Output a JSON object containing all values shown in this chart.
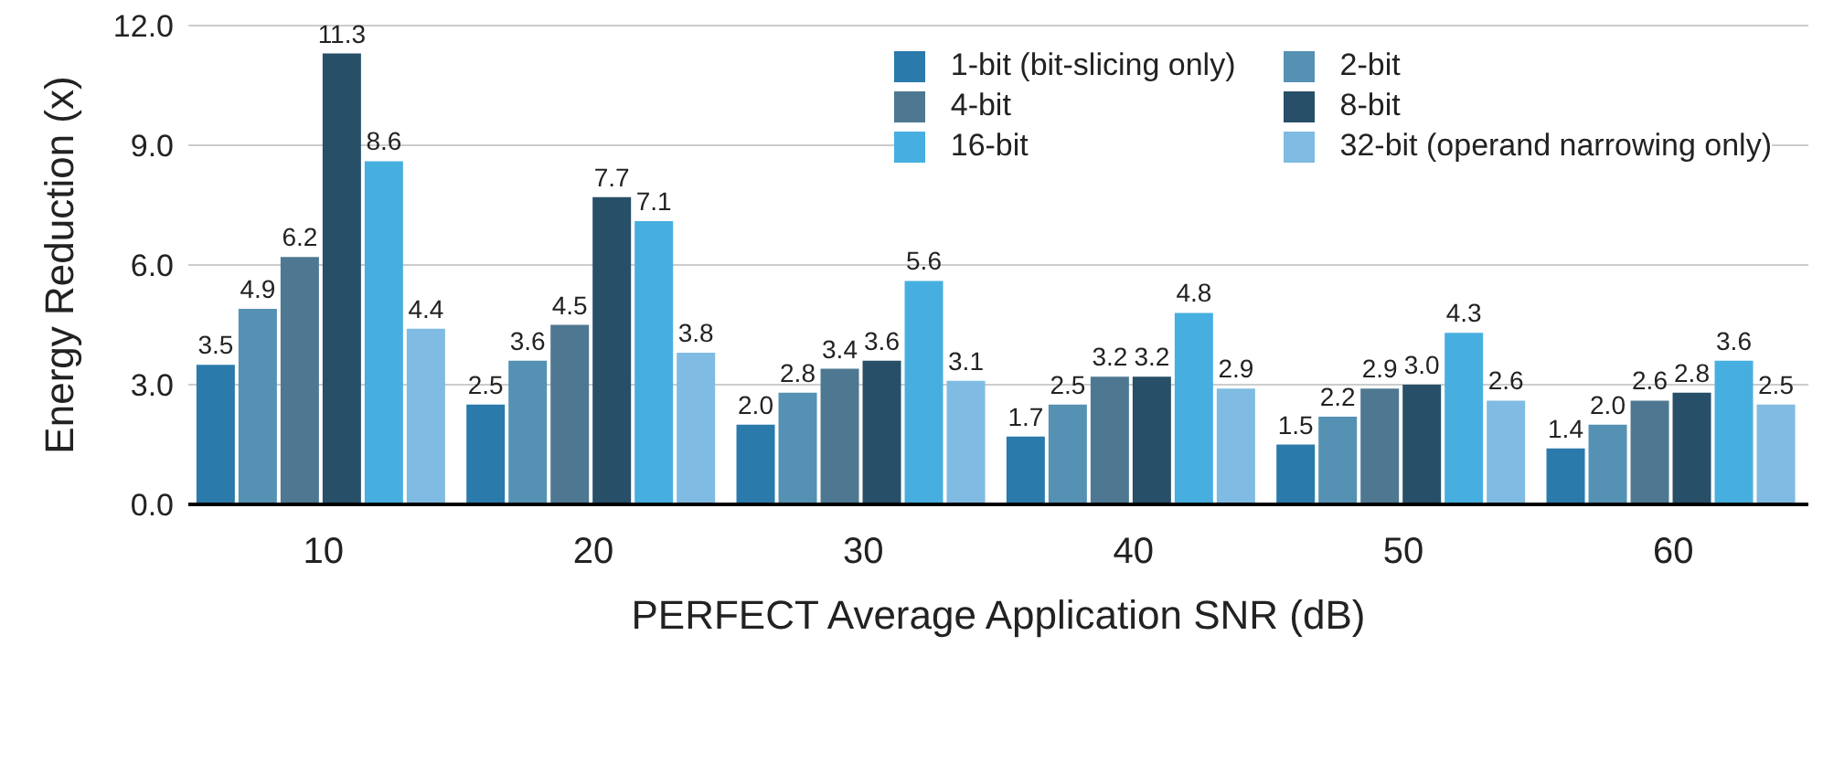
{
  "chart_data": {
    "type": "bar",
    "xlabel": "PERFECT Average Application SNR (dB)",
    "ylabel": "Energy Reduction (x)",
    "categories": [
      "10",
      "20",
      "30",
      "40",
      "50",
      "60"
    ],
    "series": [
      {
        "name": "1-bit (bit-slicing only)",
        "color": "#2a7aab",
        "values": [
          3.5,
          2.5,
          2.0,
          1.7,
          1.5,
          1.4
        ],
        "value_labels": [
          "3.5",
          "2.5",
          "2.0",
          "1.7",
          "1.5",
          "1.4"
        ]
      },
      {
        "name": "2-bit",
        "color": "#5591b3",
        "values": [
          4.9,
          3.6,
          2.8,
          2.5,
          2.2,
          2.0
        ],
        "value_labels": [
          "4.9",
          "3.6",
          "2.8",
          "2.5",
          "2.2",
          "2.0"
        ]
      },
      {
        "name": "4-bit",
        "color": "#4e7891",
        "values": [
          6.2,
          4.5,
          3.4,
          3.2,
          2.9,
          2.6
        ],
        "value_labels": [
          "6.2",
          "4.5",
          "3.4",
          "3.2",
          "2.9",
          "2.6"
        ]
      },
      {
        "name": "8-bit",
        "color": "#274f67",
        "values": [
          11.3,
          7.7,
          3.6,
          3.2,
          3.0,
          2.8
        ],
        "value_labels": [
          "11.3",
          "7.7",
          "3.6",
          "3.2",
          "3.0",
          "2.8"
        ]
      },
      {
        "name": "16-bit",
        "color": "#47afe0",
        "values": [
          8.6,
          7.1,
          5.6,
          4.8,
          4.3,
          3.6
        ],
        "value_labels": [
          "8.6",
          "7.1",
          "5.6",
          "4.8",
          "4.3",
          "3.6"
        ]
      },
      {
        "name": "32-bit (operand narrowing only)",
        "color": "#7fbbe2",
        "values": [
          4.4,
          3.8,
          3.1,
          2.9,
          2.6,
          2.5
        ],
        "value_labels": [
          "4.4",
          "3.8",
          "3.1",
          "2.9",
          "2.6",
          "2.5"
        ]
      }
    ],
    "ylim": [
      0,
      12
    ],
    "yticks": [
      {
        "value": 0,
        "label": "0.0"
      },
      {
        "value": 3,
        "label": "3.0"
      },
      {
        "value": 6,
        "label": "6.0"
      },
      {
        "value": 9,
        "label": "9.0"
      },
      {
        "value": 12,
        "label": "12.0"
      }
    ],
    "grid": "y",
    "legend": "top right"
  }
}
